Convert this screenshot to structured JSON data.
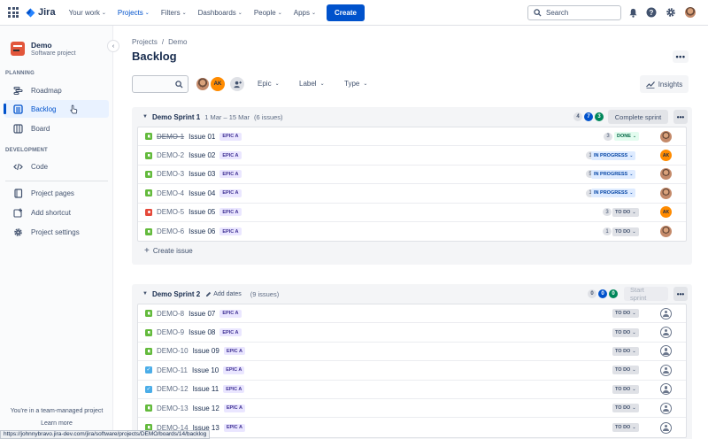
{
  "topnav": {
    "logo": "Jira",
    "items": [
      "Your work",
      "Projects",
      "Filters",
      "Dashboards",
      "People",
      "Apps"
    ],
    "create_label": "Create",
    "search_placeholder": "Search",
    "icons": [
      "notifications-icon",
      "help-icon",
      "settings-icon",
      "profile-avatar"
    ]
  },
  "sidebar": {
    "project_name": "Demo",
    "project_type": "Software project",
    "planning_heading": "PLANNING",
    "development_heading": "DEVELOPMENT",
    "items": {
      "roadmap": "Roadmap",
      "backlog": "Backlog",
      "board": "Board",
      "code": "Code",
      "project_pages": "Project pages",
      "add_shortcut": "Add shortcut",
      "project_settings": "Project settings"
    },
    "footer_line": "You're in a team-managed project",
    "footer_link": "Learn more"
  },
  "main": {
    "breadcrumb": [
      "Projects",
      "Demo"
    ],
    "title": "Backlog",
    "filters": {
      "epic": "Epic",
      "label": "Label",
      "type": "Type",
      "insights": "Insights"
    },
    "avatar_initials": "AK"
  },
  "sprints": [
    {
      "name": "Demo Sprint 1",
      "dates": "1 Mar – 15 Mar",
      "count": "(6 issues)",
      "pills": [
        "4",
        "7",
        "3"
      ],
      "action": "Complete sprint",
      "create_issue": "Create issue",
      "issues": [
        {
          "key": "DEMO-1",
          "title": "Issue 01",
          "epic": "EPIC A",
          "points": "3",
          "status": "DONE",
          "type": "story",
          "assignee": "photo",
          "done": true
        },
        {
          "key": "DEMO-2",
          "title": "Issue 02",
          "epic": "EPIC A",
          "points": "1",
          "status": "IN PROGRESS",
          "type": "story",
          "assignee": "AK"
        },
        {
          "key": "DEMO-3",
          "title": "Issue 03",
          "epic": "EPIC A",
          "points": "5",
          "status": "IN PROGRESS",
          "type": "story",
          "assignee": "photo"
        },
        {
          "key": "DEMO-4",
          "title": "Issue 04",
          "epic": "EPIC A",
          "points": "1",
          "status": "IN PROGRESS",
          "type": "story",
          "assignee": "photo"
        },
        {
          "key": "DEMO-5",
          "title": "Issue 05",
          "epic": "EPIC A",
          "points": "3",
          "status": "TO DO",
          "type": "bug",
          "assignee": "AK",
          "priority": "high"
        },
        {
          "key": "DEMO-6",
          "title": "Issue 06",
          "epic": "EPIC A",
          "points": "1",
          "status": "TO DO",
          "type": "story",
          "assignee": "photo"
        }
      ]
    },
    {
      "name": "Demo Sprint 2",
      "add_dates": "Add dates",
      "count": "(9 issues)",
      "pills": [
        "0",
        "0",
        "0"
      ],
      "action": "Start sprint",
      "issues": [
        {
          "key": "DEMO-8",
          "title": "Issue 07",
          "epic": "EPIC A",
          "status": "TO DO",
          "type": "story"
        },
        {
          "key": "DEMO-9",
          "title": "Issue 08",
          "epic": "EPIC A",
          "status": "TO DO",
          "type": "story"
        },
        {
          "key": "DEMO-10",
          "title": "Issue 09",
          "epic": "EPIC A",
          "status": "TO DO",
          "type": "story"
        },
        {
          "key": "DEMO-11",
          "title": "Issue 10",
          "epic": "EPIC A",
          "status": "TO DO",
          "type": "task"
        },
        {
          "key": "DEMO-12",
          "title": "Issue 11",
          "epic": "EPIC A",
          "status": "TO DO",
          "type": "task"
        },
        {
          "key": "DEMO-13",
          "title": "Issue 12",
          "epic": "EPIC A",
          "status": "TO DO",
          "type": "story"
        },
        {
          "key": "DEMO-14",
          "title": "Issue 13",
          "epic": "EPIC A",
          "status": "TO DO",
          "type": "story"
        }
      ]
    }
  ],
  "status_url": "https://johnnybravo.jira-dev.com/jira/software/projects/DEMO/boards/14/backlog"
}
